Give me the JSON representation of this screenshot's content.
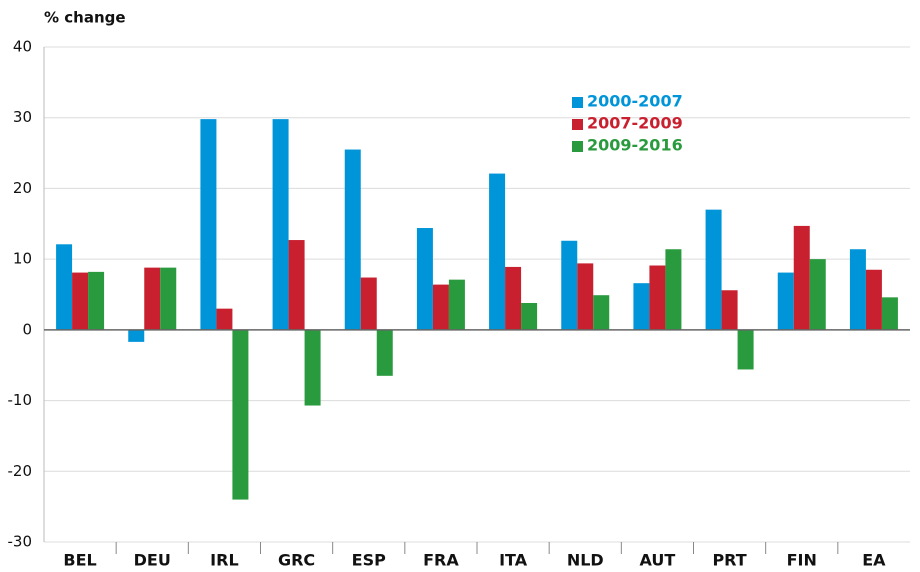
{
  "chart_data": {
    "type": "bar",
    "ylabel": "% change",
    "categories": [
      "BEL",
      "DEU",
      "IRL",
      "GRC",
      "ESP",
      "FRA",
      "ITA",
      "NLD",
      "AUT",
      "PRT",
      "FIN",
      "EA"
    ],
    "series": [
      {
        "name": "2000-2007",
        "color": "#0095d9",
        "values": [
          12.1,
          -1.7,
          29.8,
          29.8,
          25.5,
          14.4,
          22.1,
          12.6,
          6.6,
          17.0,
          8.1,
          11.4
        ]
      },
      {
        "name": "2007-2009",
        "color": "#c8202f",
        "values": [
          8.1,
          8.8,
          3.0,
          12.7,
          7.4,
          6.4,
          8.9,
          9.4,
          9.1,
          5.6,
          14.7,
          8.5
        ]
      },
      {
        "name": "2009-2016",
        "color": "#2a9a3e",
        "values": [
          8.2,
          8.8,
          -24.0,
          -10.7,
          -6.5,
          7.1,
          3.8,
          4.9,
          11.4,
          -5.6,
          10.0,
          4.6
        ]
      }
    ],
    "ylim": [
      -30,
      40
    ],
    "yticks": [
      -30,
      -20,
      -10,
      0,
      10,
      20,
      30,
      40
    ],
    "grid": true,
    "legend": "upper center"
  }
}
